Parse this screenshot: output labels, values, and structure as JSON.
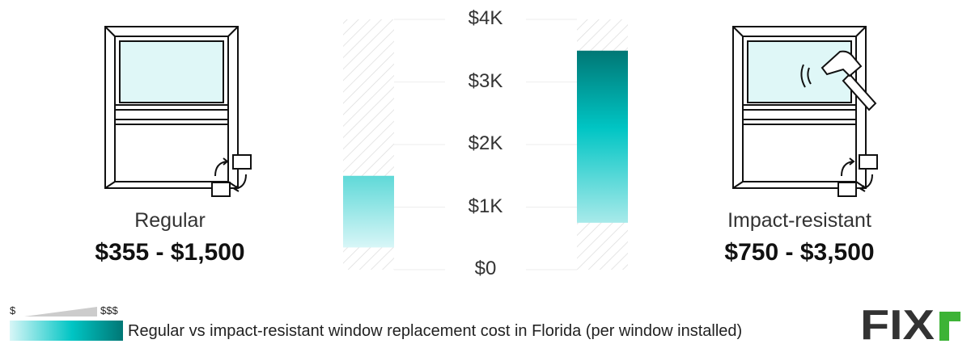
{
  "chart_data": {
    "type": "floating-bar",
    "categories": [
      "Regular",
      "Impact-resistant"
    ],
    "series": [
      {
        "low": [
          355,
          750
        ],
        "high": [
          1500,
          3500
        ]
      }
    ],
    "range_labels": [
      "$355 - $1,500",
      "$750 - $3,500"
    ],
    "yticks": [
      "$0",
      "$1K",
      "$2K",
      "$3K",
      "$4K"
    ],
    "ytick_values": [
      0,
      1000,
      2000,
      3000,
      4000
    ],
    "ylim": [
      0,
      4000
    ],
    "grid": true,
    "caption": "Regular vs impact-resistant window replacement cost in Florida (per window installed)"
  },
  "legend": {
    "low": "$",
    "high": "$$$"
  },
  "brand": {
    "logo_text": "FIXR"
  },
  "colors": {
    "bar_light": "#d8f6f7",
    "bar_mid": "#00c5c4",
    "bar_dark": "#007775",
    "hatch": "#dddddd",
    "logo_dark": "#333333",
    "logo_green": "#3db336"
  },
  "icons": {
    "left": "window-icon",
    "right": "window-hammer-icon"
  }
}
